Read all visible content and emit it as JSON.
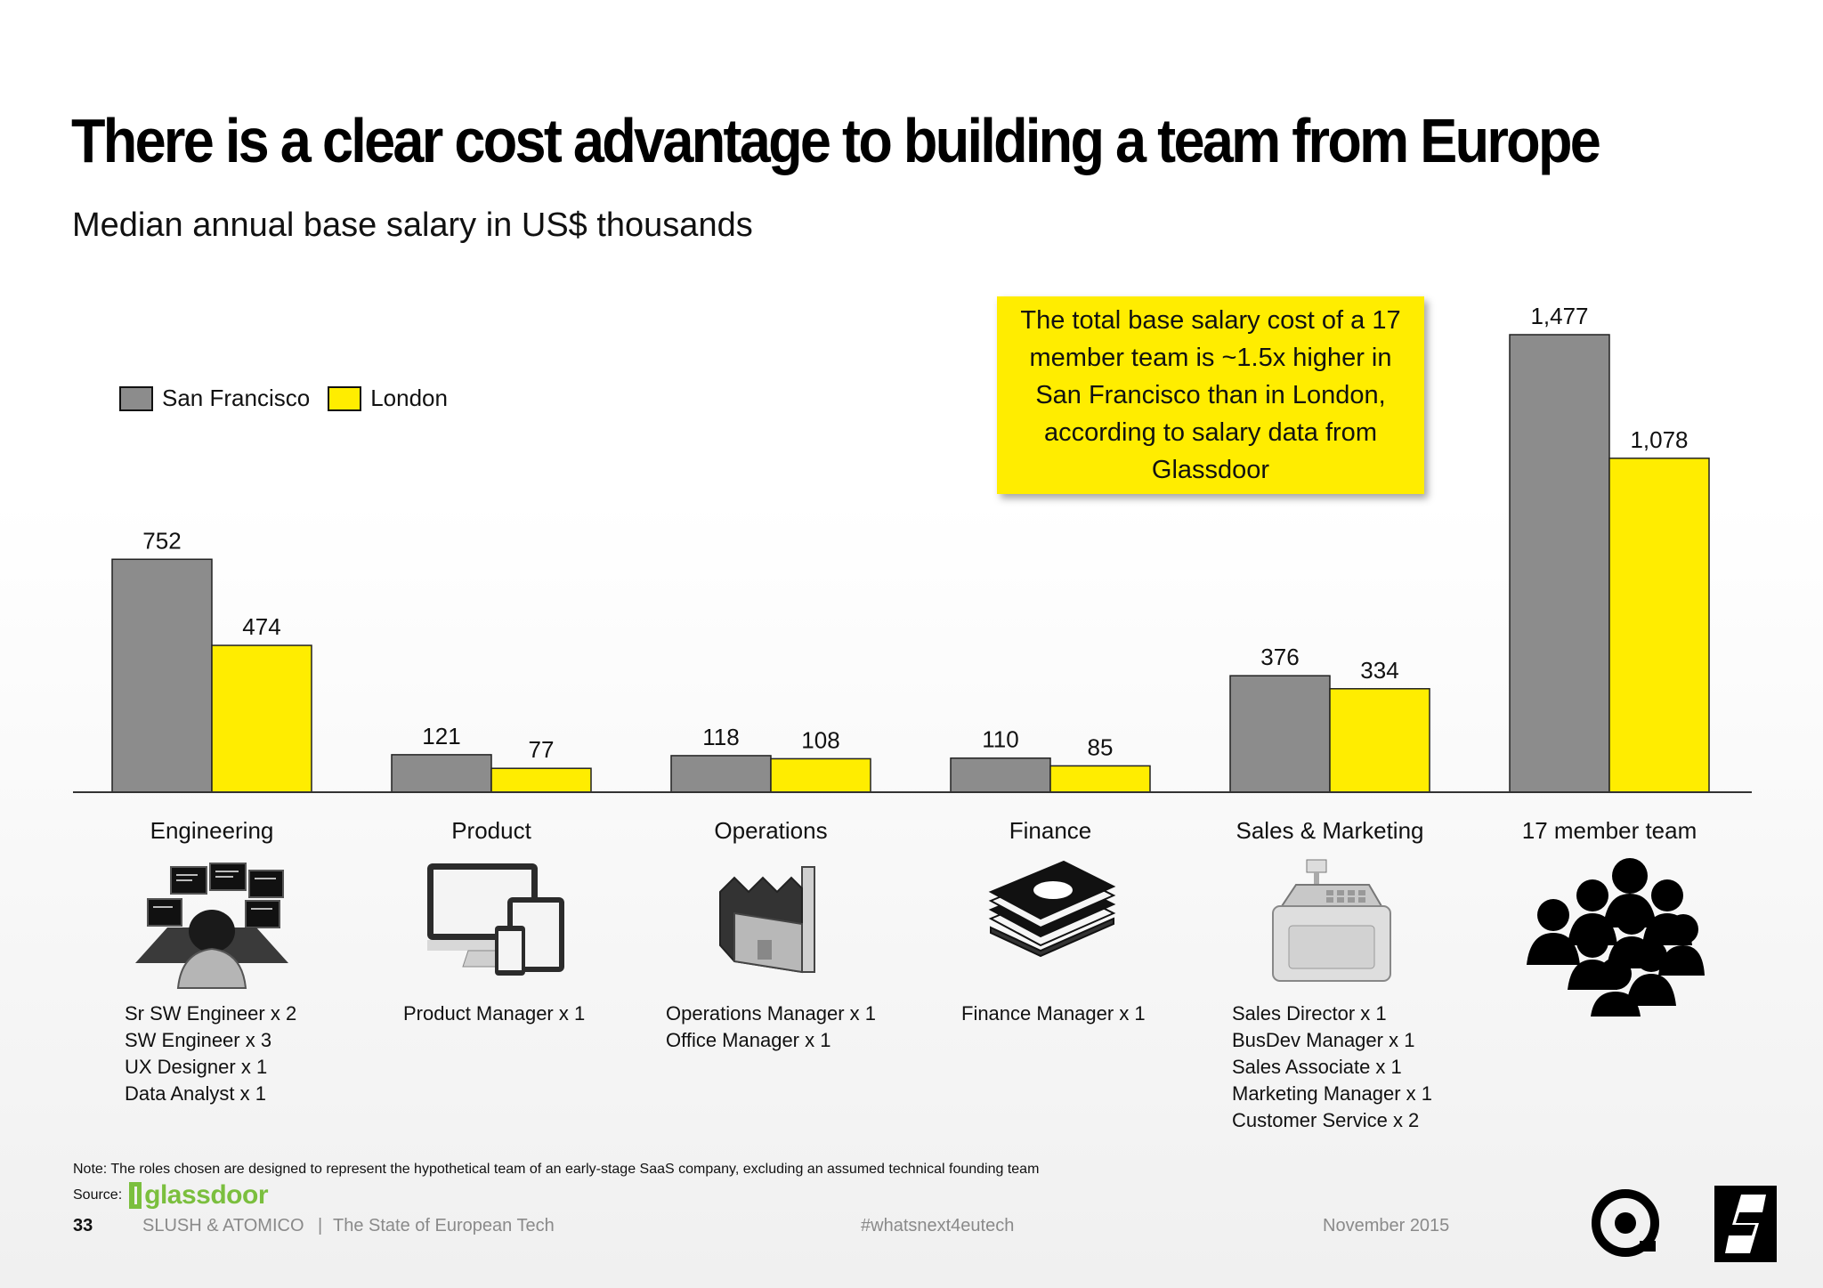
{
  "title": "There is a clear cost advantage to building a team from Europe",
  "subtitle": "Median annual base salary in US$ thousands",
  "callout": "The total base salary cost of a 17 member team is ~1.5x higher in San Francisco than in London, according to salary data from Glassdoor",
  "chart_data": {
    "type": "bar",
    "categories": [
      "Engineering",
      "Product",
      "Operations",
      "Finance",
      "Sales & Marketing",
      "17 member team"
    ],
    "series": [
      {
        "name": "San Francisco",
        "values": [
          752,
          121,
          118,
          110,
          376,
          1477
        ],
        "labels": [
          "752",
          "121",
          "118",
          "110",
          "376",
          "1,477"
        ],
        "color": "#8c8c8c"
      },
      {
        "name": "London",
        "values": [
          474,
          77,
          108,
          85,
          334,
          1078
        ],
        "labels": [
          "474",
          "77",
          "108",
          "85",
          "334",
          "1,078"
        ],
        "color": "#ffed00"
      }
    ],
    "ylim": [
      0,
      1477
    ],
    "legend_position": "top-left",
    "grid": false
  },
  "categories": {
    "engineering": {
      "label": "Engineering",
      "icon": "developer-workstation-icon",
      "roles": [
        "Sr SW Engineer x 2",
        "SW Engineer x 3",
        "UX Designer x 1",
        "Data Analyst x 1"
      ]
    },
    "product": {
      "label": "Product",
      "icon": "devices-icon",
      "roles": [
        "Product Manager x 1"
      ]
    },
    "operations": {
      "label": "Operations",
      "icon": "factory-icon",
      "roles": [
        "Operations Manager x 1",
        "Office Manager x 1"
      ]
    },
    "finance": {
      "label": "Finance",
      "icon": "money-stack-icon",
      "roles": [
        "Finance Manager x 1"
      ]
    },
    "sales": {
      "label": "Sales & Marketing",
      "icon": "cash-register-icon",
      "roles": [
        "Sales Director x 1",
        "BusDev Manager x 1",
        "Sales Associate x 1",
        "Marketing Manager x 1",
        "Customer Service x 2"
      ]
    },
    "team": {
      "label": "17 member team",
      "icon": "people-group-icon",
      "roles": []
    }
  },
  "legend": {
    "sf": "San Francisco",
    "london": "London"
  },
  "note": "Note: The roles chosen are designed to represent the hypothetical team of an early-stage SaaS company, excluding an assumed technical founding team",
  "source_label": "Source:",
  "source_logo": "glassdoor",
  "footer": {
    "page": "33",
    "org": "SLUSH & ATOMICO",
    "separator": "|",
    "report": "The State of European Tech",
    "hashtag": "#whatsnext4eutech",
    "date": "November 2015"
  },
  "colors": {
    "sf": "#8c8c8c",
    "london": "#ffed00",
    "callout": "#ffed00",
    "glassdoor": "#7bbf3e"
  }
}
